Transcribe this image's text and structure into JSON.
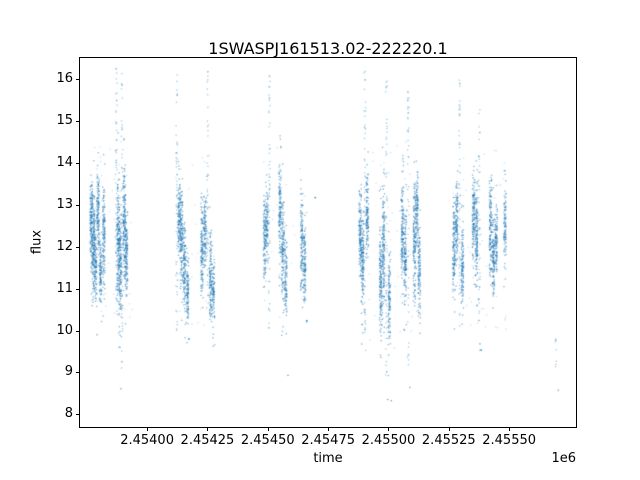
{
  "chart_data": {
    "type": "scatter",
    "title": "1SWASPJ161513.02-222220.1",
    "xlabel": "time",
    "ylabel": "flux",
    "x_offset_text": "1e6",
    "grid": false,
    "legend": "none",
    "marker_color": "#1f77b4",
    "marker_size": 1.3,
    "xlim": [
      2453722,
      2455777
    ],
    "ylim": [
      7.7,
      16.5
    ],
    "x_ticks": [
      {
        "value": 2454000,
        "label": "2.45400"
      },
      {
        "value": 2454250,
        "label": "2.45425"
      },
      {
        "value": 2454500,
        "label": "2.45450"
      },
      {
        "value": 2454750,
        "label": "2.45475"
      },
      {
        "value": 2455000,
        "label": "2.45500"
      },
      {
        "value": 2455250,
        "label": "2.45525"
      },
      {
        "value": 2455500,
        "label": "2.45550"
      }
    ],
    "y_ticks": [
      {
        "value": 8,
        "label": "8"
      },
      {
        "value": 9,
        "label": "9"
      },
      {
        "value": 10,
        "label": "10"
      },
      {
        "value": 11,
        "label": "11"
      },
      {
        "value": 12,
        "label": "12"
      },
      {
        "value": 13,
        "label": "13"
      },
      {
        "value": 14,
        "label": "14"
      },
      {
        "value": 15,
        "label": "15"
      },
      {
        "value": 16,
        "label": "16"
      }
    ],
    "seed": 7,
    "nights": [
      {
        "t": 2453766,
        "kind": "dense",
        "c": 12.6,
        "h": 1.2,
        "n": 150
      },
      {
        "t": 2453775,
        "kind": "dense",
        "c": 12.1,
        "h": 1.4,
        "n": 160
      },
      {
        "t": 2453784,
        "kind": "dense",
        "c": 11.6,
        "h": 1.0,
        "n": 110
      },
      {
        "t": 2453794,
        "kind": "dense",
        "c": 12.9,
        "h": 1.0,
        "n": 130
      },
      {
        "t": 2453805,
        "kind": "dense",
        "c": 11.4,
        "h": 0.9,
        "n": 100
      },
      {
        "t": 2453818,
        "kind": "dense",
        "c": 12.3,
        "h": 1.3,
        "n": 140
      },
      {
        "t": 2453790,
        "kind": "point",
        "f": 9.9,
        "n": 1
      },
      {
        "t": 2453870,
        "kind": "wisp",
        "lo": 10.4,
        "hi": 16.3,
        "n": 70
      },
      {
        "t": 2453878,
        "kind": "dense",
        "c": 12.2,
        "h": 1.7,
        "n": 170
      },
      {
        "t": 2453886,
        "kind": "dense",
        "c": 11.6,
        "h": 1.4,
        "n": 150
      },
      {
        "t": 2453894,
        "kind": "wisp",
        "lo": 9.0,
        "hi": 16.2,
        "n": 60
      },
      {
        "t": 2453903,
        "kind": "dense",
        "c": 12.6,
        "h": 1.5,
        "n": 160
      },
      {
        "t": 2453912,
        "kind": "dense",
        "c": 11.9,
        "h": 1.2,
        "n": 130
      },
      {
        "t": 2453890,
        "kind": "point",
        "f": 8.6,
        "n": 1
      },
      {
        "t": 2454120,
        "kind": "wisp",
        "lo": 10.0,
        "hi": 16.2,
        "n": 55
      },
      {
        "t": 2454130,
        "kind": "dense",
        "c": 12.7,
        "h": 1.0,
        "n": 120
      },
      {
        "t": 2454140,
        "kind": "dense",
        "c": 12.2,
        "h": 1.3,
        "n": 140
      },
      {
        "t": 2454152,
        "kind": "dense",
        "c": 11.6,
        "h": 1.2,
        "n": 120
      },
      {
        "t": 2454165,
        "kind": "dense",
        "c": 11.0,
        "h": 0.9,
        "n": 100
      },
      {
        "t": 2454170,
        "kind": "point",
        "f": 9.8,
        "n": 2
      },
      {
        "t": 2454225,
        "kind": "dense",
        "c": 11.9,
        "h": 1.4,
        "n": 130
      },
      {
        "t": 2454237,
        "kind": "dense",
        "c": 12.4,
        "h": 1.0,
        "n": 110
      },
      {
        "t": 2454248,
        "kind": "wisp",
        "lo": 10.4,
        "hi": 16.2,
        "n": 50
      },
      {
        "t": 2454260,
        "kind": "dense",
        "c": 11.3,
        "h": 1.2,
        "n": 120
      },
      {
        "t": 2454272,
        "kind": "dense",
        "c": 10.9,
        "h": 0.9,
        "n": 90
      },
      {
        "t": 2454484,
        "kind": "dense",
        "c": 12.1,
        "h": 1.2,
        "n": 110
      },
      {
        "t": 2454494,
        "kind": "dense",
        "c": 12.6,
        "h": 1.0,
        "n": 100
      },
      {
        "t": 2454504,
        "kind": "wisp",
        "lo": 10.0,
        "hi": 16.1,
        "n": 55
      },
      {
        "t": 2454548,
        "kind": "dense",
        "c": 12.9,
        "h": 1.3,
        "n": 130
      },
      {
        "t": 2454560,
        "kind": "dense",
        "c": 11.9,
        "h": 1.4,
        "n": 130
      },
      {
        "t": 2454572,
        "kind": "dense",
        "c": 11.3,
        "h": 1.0,
        "n": 100
      },
      {
        "t": 2454580,
        "kind": "point",
        "f": 9.0,
        "n": 1
      },
      {
        "t": 2454638,
        "kind": "dense",
        "c": 12.2,
        "h": 1.3,
        "n": 120
      },
      {
        "t": 2454650,
        "kind": "dense",
        "c": 11.6,
        "h": 1.1,
        "n": 110
      },
      {
        "t": 2454660,
        "kind": "point",
        "f": 10.2,
        "n": 3
      },
      {
        "t": 2454695,
        "kind": "point",
        "f": 13.2,
        "n": 2
      },
      {
        "t": 2454880,
        "kind": "dense",
        "c": 12.3,
        "h": 1.2,
        "n": 130
      },
      {
        "t": 2454890,
        "kind": "dense",
        "c": 11.7,
        "h": 1.4,
        "n": 140
      },
      {
        "t": 2454900,
        "kind": "wisp",
        "lo": 9.5,
        "hi": 16.2,
        "n": 60
      },
      {
        "t": 2454910,
        "kind": "dense",
        "c": 12.8,
        "h": 1.1,
        "n": 120
      },
      {
        "t": 2454965,
        "kind": "dense",
        "c": 11.2,
        "h": 1.5,
        "n": 150
      },
      {
        "t": 2454977,
        "kind": "dense",
        "c": 12.0,
        "h": 1.6,
        "n": 160
      },
      {
        "t": 2454989,
        "kind": "wisp",
        "lo": 8.8,
        "hi": 16.0,
        "n": 55
      },
      {
        "t": 2455001,
        "kind": "dense",
        "c": 10.7,
        "h": 1.2,
        "n": 110
      },
      {
        "t": 2454995,
        "kind": "point",
        "f": 8.4,
        "n": 1
      },
      {
        "t": 2455010,
        "kind": "point",
        "f": 8.3,
        "n": 1
      },
      {
        "t": 2455055,
        "kind": "dense",
        "c": 12.4,
        "h": 1.4,
        "n": 140
      },
      {
        "t": 2455067,
        "kind": "dense",
        "c": 11.8,
        "h": 1.2,
        "n": 130
      },
      {
        "t": 2455079,
        "kind": "wisp",
        "lo": 9.2,
        "hi": 15.8,
        "n": 50
      },
      {
        "t": 2455085,
        "kind": "point",
        "f": 8.6,
        "n": 1
      },
      {
        "t": 2455105,
        "kind": "dense",
        "c": 12.1,
        "h": 1.5,
        "n": 150
      },
      {
        "t": 2455115,
        "kind": "dense",
        "c": 12.9,
        "h": 1.0,
        "n": 110
      },
      {
        "t": 2455125,
        "kind": "dense",
        "c": 11.4,
        "h": 1.3,
        "n": 120
      },
      {
        "t": 2455268,
        "kind": "dense",
        "c": 12.0,
        "h": 1.3,
        "n": 130
      },
      {
        "t": 2455280,
        "kind": "dense",
        "c": 12.6,
        "h": 1.1,
        "n": 120
      },
      {
        "t": 2455292,
        "kind": "wisp",
        "lo": 10.0,
        "hi": 16.0,
        "n": 55
      },
      {
        "t": 2455304,
        "kind": "dense",
        "c": 11.5,
        "h": 1.2,
        "n": 120
      },
      {
        "t": 2455350,
        "kind": "dense",
        "c": 12.8,
        "h": 1.2,
        "n": 130
      },
      {
        "t": 2455362,
        "kind": "dense",
        "c": 12.2,
        "h": 1.4,
        "n": 140
      },
      {
        "t": 2455374,
        "kind": "wisp",
        "lo": 9.4,
        "hi": 15.6,
        "n": 50
      },
      {
        "t": 2455380,
        "kind": "point",
        "f": 9.6,
        "n": 2
      },
      {
        "t": 2455420,
        "kind": "dense",
        "c": 12.5,
        "h": 1.3,
        "n": 130
      },
      {
        "t": 2455432,
        "kind": "dense",
        "c": 11.8,
        "h": 1.1,
        "n": 120
      },
      {
        "t": 2455444,
        "kind": "dense",
        "c": 12.2,
        "h": 0.9,
        "n": 100
      },
      {
        "t": 2455480,
        "kind": "dense",
        "c": 12.4,
        "h": 1.0,
        "n": 100
      },
      {
        "t": 2455690,
        "kind": "wisp",
        "lo": 9.1,
        "hi": 10.0,
        "n": 8
      },
      {
        "t": 2455700,
        "kind": "point",
        "f": 8.55,
        "n": 1
      }
    ],
    "halos": [
      {
        "t0": 2453763,
        "t1": 2453940,
        "lo": 10.2,
        "hi": 14.6,
        "n": 50
      },
      {
        "t0": 2454116,
        "t1": 2454280,
        "lo": 10.0,
        "hi": 14.4,
        "n": 40
      },
      {
        "t0": 2454480,
        "t1": 2454670,
        "lo": 10.2,
        "hi": 14.4,
        "n": 35
      },
      {
        "t0": 2454874,
        "t1": 2455130,
        "lo": 9.6,
        "hi": 14.6,
        "n": 55
      },
      {
        "t0": 2455263,
        "t1": 2455490,
        "lo": 10.0,
        "hi": 14.4,
        "n": 50
      }
    ]
  }
}
